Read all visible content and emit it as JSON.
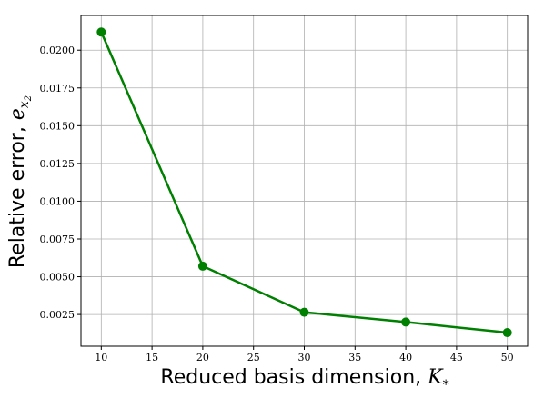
{
  "chart_data": {
    "type": "line",
    "title": "",
    "xlabel_text": "Reduced basis dimension, ",
    "xlabel_symbol": "K",
    "xlabel_subscript": "*",
    "ylabel_text": "Relative error, ",
    "ylabel_symbol": "e",
    "ylabel_subscript": "x",
    "ylabel_subsubscript": "2",
    "x": [
      10,
      20,
      30,
      40,
      50
    ],
    "series": [
      {
        "values": [
          0.0212,
          0.0057,
          0.00265,
          0.002,
          0.0013
        ],
        "color": "#008000",
        "marker": "circle"
      }
    ],
    "xlim": [
      8,
      52
    ],
    "ylim": [
      0.0004,
      0.0223
    ],
    "xticks": [
      10,
      15,
      20,
      25,
      30,
      35,
      40,
      45,
      50
    ],
    "xtick_labels": [
      "10",
      "15",
      "20",
      "25",
      "30",
      "35",
      "40",
      "45",
      "50"
    ],
    "yticks": [
      0.0025,
      0.005,
      0.0075,
      0.01,
      0.0125,
      0.015,
      0.0175,
      0.02
    ],
    "ytick_labels": [
      "0.0025",
      "0.0050",
      "0.0075",
      "0.0100",
      "0.0125",
      "0.0150",
      "0.0175",
      "0.0200"
    ],
    "grid": true
  }
}
